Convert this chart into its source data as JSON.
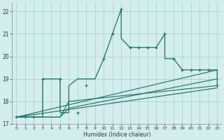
{
  "xlabel": "Humidex (Indice chaleur)",
  "bg_color": "#d4eeed",
  "grid_color": "#a0ccca",
  "line_color": "#1a6e64",
  "xlim": [
    -0.5,
    23.5
  ],
  "ylim": [
    17.0,
    22.4
  ],
  "xticks": [
    0,
    1,
    2,
    3,
    4,
    5,
    6,
    7,
    8,
    9,
    10,
    11,
    12,
    13,
    14,
    15,
    16,
    17,
    18,
    19,
    20,
    21,
    22,
    23
  ],
  "yticks": [
    17,
    18,
    19,
    20,
    21,
    22
  ],
  "series1_x": [
    0,
    1,
    2,
    3,
    3,
    4,
    5,
    5,
    6,
    6,
    7,
    8,
    9,
    10,
    11,
    12,
    12,
    13,
    14,
    15,
    16,
    17,
    17,
    18,
    19,
    19,
    20,
    21,
    22,
    23,
    23
  ],
  "series1_y": [
    17.3,
    17.3,
    17.3,
    17.3,
    19.0,
    19.0,
    19.0,
    17.5,
    17.5,
    18.7,
    19.0,
    19.0,
    19.0,
    19.9,
    21.0,
    22.1,
    20.8,
    20.4,
    20.4,
    20.4,
    20.4,
    21.0,
    19.9,
    19.9,
    19.4,
    19.4,
    19.4,
    19.4,
    19.4,
    19.4,
    18.7
  ],
  "series1_marked_x": [
    0,
    1,
    2,
    3,
    5,
    7,
    8,
    10,
    11,
    12,
    13,
    14,
    15,
    16,
    17,
    18,
    19,
    20,
    21,
    22,
    23
  ],
  "series1_marked_y": [
    17.3,
    17.3,
    17.3,
    19.0,
    19.0,
    17.5,
    18.7,
    19.9,
    21.0,
    22.1,
    20.4,
    20.4,
    20.4,
    20.4,
    21.0,
    19.9,
    19.4,
    19.4,
    19.4,
    19.4,
    18.7
  ],
  "series2_x": [
    0,
    23
  ],
  "series2_y": [
    17.3,
    18.6
  ],
  "series3_x": [
    0,
    23
  ],
  "series3_y": [
    17.3,
    19.4
  ],
  "series4_x": [
    0,
    5,
    6,
    23
  ],
  "series4_y": [
    17.3,
    17.3,
    17.7,
    19.0
  ],
  "series5_x": [
    0,
    5,
    6,
    23
  ],
  "series5_y": [
    17.3,
    17.3,
    18.0,
    18.7
  ]
}
